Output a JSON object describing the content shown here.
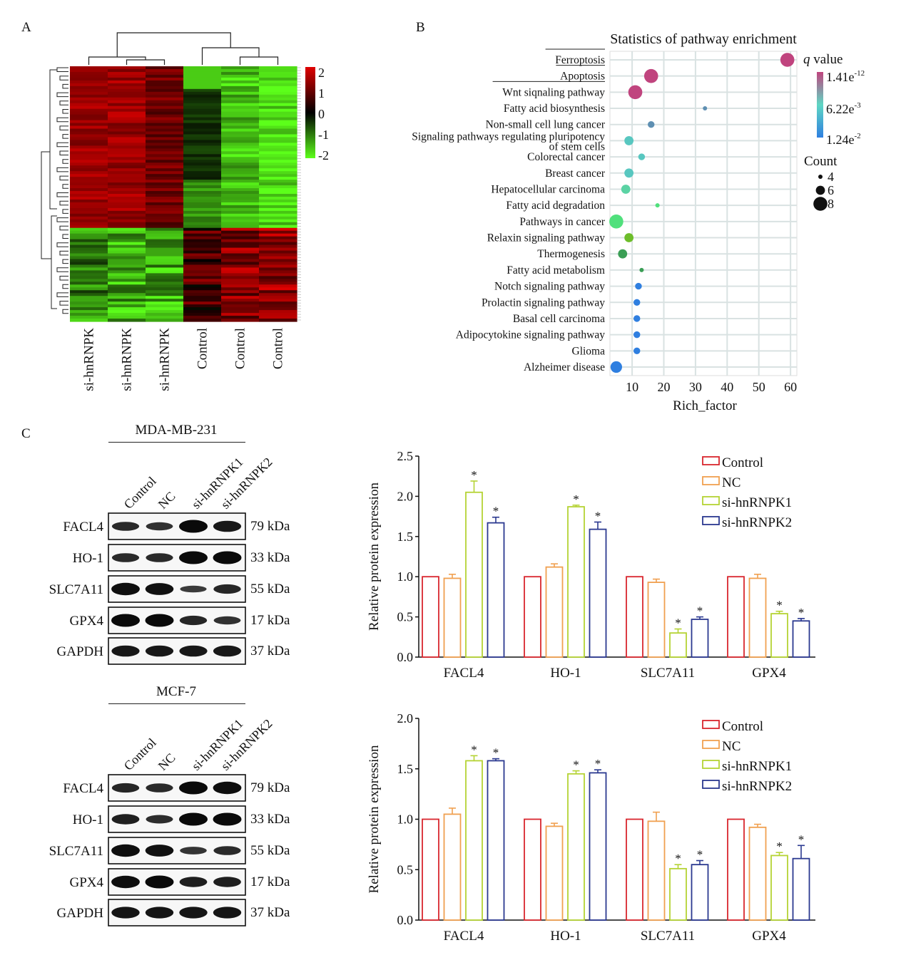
{
  "panels": {
    "a": "A",
    "b": "B",
    "c": "C"
  },
  "heatmap": {
    "samples": [
      "si-hnRNPK",
      "si-hnRNPK",
      "si-hnRNPK",
      "Control",
      "Control",
      "Control"
    ],
    "colorbar_ticks": [
      "2",
      "1",
      "0",
      "-1",
      "-2"
    ],
    "colors": {
      "high": "#e00000",
      "mid": "#000000",
      "low": "#5cff1a"
    }
  },
  "bubble": {
    "chart_data": {
      "type": "scatter",
      "title": "Statistics of pathway enrichment",
      "xlabel": "Rich_factor",
      "xticks": [
        "10",
        "20",
        "30",
        "40",
        "50",
        "60"
      ],
      "xlim": [
        3,
        62
      ],
      "pathways": [
        {
          "name": "Ferroptosis",
          "rich": 59,
          "count": 8,
          "color": "#c0447e"
        },
        {
          "name": "Apoptosis",
          "rich": 16,
          "count": 8,
          "color": "#c0447e"
        },
        {
          "name": "Wnt siqnaling pathway",
          "rich": 11,
          "count": 8,
          "color": "#c0447e"
        },
        {
          "name": "Fatty acid biosynthesis",
          "rich": 33,
          "count": 4,
          "color": "#5e8fb2"
        },
        {
          "name": "Non-small cell lung cancer",
          "rich": 16,
          "count": 5,
          "color": "#5e8fb2"
        },
        {
          "name": "Signaling pathways regulating pluripotency",
          "name2": "of stem cells",
          "rich": 9,
          "count": 6,
          "color": "#58c7c0"
        },
        {
          "name": "Colorectal cancer",
          "rich": 13,
          "count": 5,
          "color": "#58c7c0"
        },
        {
          "name": "Breast cancer",
          "rich": 9,
          "count": 6,
          "color": "#58c7c0"
        },
        {
          "name": "Hepatocellular carcinoma",
          "rich": 8,
          "count": 6,
          "color": "#5bd3a4"
        },
        {
          "name": "Fatty acid degradation",
          "rich": 18,
          "count": 4,
          "color": "#50e07c"
        },
        {
          "name": "Pathways in cancer",
          "rich": 5,
          "count": 8,
          "color": "#50e07c"
        },
        {
          "name": "Relaxin signaling pathway",
          "rich": 9,
          "count": 6,
          "color": "#6dbd2a"
        },
        {
          "name": "Thermogenesis",
          "rich": 7,
          "count": 6,
          "color": "#3a9e55"
        },
        {
          "name": "Fatty acid metabolism",
          "rich": 13,
          "count": 4,
          "color": "#3a9e55"
        },
        {
          "name": "Notch signaling pathway",
          "rich": 12,
          "count": 5,
          "color": "#2f7fe0"
        },
        {
          "name": "Prolactin signaling pathway",
          "rich": 11.5,
          "count": 5,
          "color": "#2f7fe0"
        },
        {
          "name": "Basal cell carcinoma",
          "rich": 11.5,
          "count": 5,
          "color": "#2f7fe0"
        },
        {
          "name": "Adipocytokine signaling pathway",
          "rich": 11.5,
          "count": 5,
          "color": "#2f7fe0"
        },
        {
          "name": "Glioma",
          "rich": 11.5,
          "count": 5,
          "color": "#2f7fe0"
        },
        {
          "name": "Alzheimer disease",
          "rich": 5,
          "count": 7,
          "color": "#2f7fe0"
        }
      ],
      "legend_q": {
        "title": "q value",
        "labels": [
          "1.41e",
          "6.22e",
          "1.24e"
        ],
        "exps": [
          "-12",
          "-3",
          "-2"
        ]
      },
      "legend_count": {
        "title": "Count",
        "labels": [
          "4",
          "6",
          "8"
        ]
      }
    }
  },
  "western": {
    "blots": [
      {
        "cell_line": "MDA-MB-231",
        "lanes": [
          "Control",
          "NC",
          "si-hnRNPK1",
          "si-hnRNPK2"
        ],
        "proteins": [
          {
            "name": "FACL4",
            "kda": "79 kDa",
            "intensity": [
              0.55,
              0.45,
              1.0,
              0.8
            ]
          },
          {
            "name": "HO-1",
            "kda": "33 kDa",
            "intensity": [
              0.55,
              0.55,
              1.0,
              1.0
            ]
          },
          {
            "name": "SLC7A11",
            "kda": "55 kDa",
            "intensity": [
              0.95,
              0.9,
              0.3,
              0.6
            ]
          },
          {
            "name": "GPX4",
            "kda": "17 kDa",
            "intensity": [
              1.0,
              1.0,
              0.6,
              0.45
            ]
          },
          {
            "name": "GAPDH",
            "kda": "37 kDa",
            "intensity": [
              0.8,
              0.8,
              0.8,
              0.8
            ]
          }
        ]
      },
      {
        "cell_line": "MCF-7",
        "lanes": [
          "Control",
          "NC",
          "si-hnRNPK1",
          "si-hnRNPK2"
        ],
        "proteins": [
          {
            "name": "FACL4",
            "kda": "79 kDa",
            "intensity": [
              0.6,
              0.55,
              1.0,
              0.95
            ]
          },
          {
            "name": "HO-1",
            "kda": "33 kDa",
            "intensity": [
              0.7,
              0.5,
              1.0,
              1.0
            ]
          },
          {
            "name": "SLC7A11",
            "kda": "55 kDa",
            "intensity": [
              0.95,
              0.9,
              0.4,
              0.55
            ]
          },
          {
            "name": "GPX4",
            "kda": "17 kDa",
            "intensity": [
              0.95,
              1.0,
              0.7,
              0.7
            ]
          },
          {
            "name": "GAPDH",
            "kda": "37 kDa",
            "intensity": [
              0.85,
              0.85,
              0.85,
              0.85
            ]
          }
        ]
      }
    ]
  },
  "chart_data": [
    {
      "type": "bar",
      "ylabel": "Relative protein expression",
      "ylim": [
        0,
        2.5
      ],
      "yticks": [
        "0.0",
        "0.5",
        "1.0",
        "1.5",
        "2.0",
        "2.5"
      ],
      "categories": [
        "FACL4",
        "HO-1",
        "SLC7A11",
        "GPX4"
      ],
      "series": [
        {
          "name": "Control",
          "color": "#d9262e",
          "values": [
            1.0,
            1.0,
            1.0,
            1.0
          ],
          "err": [
            0,
            0,
            0,
            0
          ],
          "sig": [
            false,
            false,
            false,
            false
          ]
        },
        {
          "name": "NC",
          "color": "#f0a050",
          "values": [
            0.98,
            1.12,
            0.93,
            0.98
          ],
          "err": [
            0.05,
            0.04,
            0.04,
            0.05
          ],
          "sig": [
            false,
            false,
            false,
            false
          ]
        },
        {
          "name": "si-hnRNPK1",
          "color": "#b5d334",
          "values": [
            2.05,
            1.87,
            0.3,
            0.54
          ],
          "err": [
            0.14,
            0.02,
            0.05,
            0.03
          ],
          "sig": [
            true,
            true,
            true,
            true
          ]
        },
        {
          "name": "si-hnRNPK2",
          "color": "#2b3990",
          "values": [
            1.67,
            1.59,
            0.47,
            0.45
          ],
          "err": [
            0.07,
            0.09,
            0.03,
            0.03
          ],
          "sig": [
            true,
            true,
            true,
            true
          ]
        }
      ],
      "sig_mark": "*"
    },
    {
      "type": "bar",
      "ylabel": "Relative protein expression",
      "ylim": [
        0,
        2.0
      ],
      "yticks": [
        "0.0",
        "0.5",
        "1.0",
        "1.5",
        "2.0"
      ],
      "categories": [
        "FACL4",
        "HO-1",
        "SLC7A11",
        "GPX4"
      ],
      "series": [
        {
          "name": "Control",
          "color": "#d9262e",
          "values": [
            1.0,
            1.0,
            1.0,
            1.0
          ],
          "err": [
            0,
            0,
            0,
            0
          ],
          "sig": [
            false,
            false,
            false,
            false
          ]
        },
        {
          "name": "NC",
          "color": "#f0a050",
          "values": [
            1.05,
            0.93,
            0.98,
            0.92
          ],
          "err": [
            0.06,
            0.03,
            0.09,
            0.03
          ],
          "sig": [
            false,
            false,
            false,
            false
          ]
        },
        {
          "name": "si-hnRNPK1",
          "color": "#b5d334",
          "values": [
            1.58,
            1.45,
            0.51,
            0.64
          ],
          "err": [
            0.05,
            0.03,
            0.04,
            0.03
          ],
          "sig": [
            true,
            true,
            true,
            true
          ]
        },
        {
          "name": "si-hnRNPK2",
          "color": "#2b3990",
          "values": [
            1.58,
            1.46,
            0.55,
            0.61
          ],
          "err": [
            0.02,
            0.03,
            0.04,
            0.13
          ],
          "sig": [
            true,
            true,
            true,
            true
          ]
        }
      ],
      "sig_mark": "*"
    }
  ]
}
